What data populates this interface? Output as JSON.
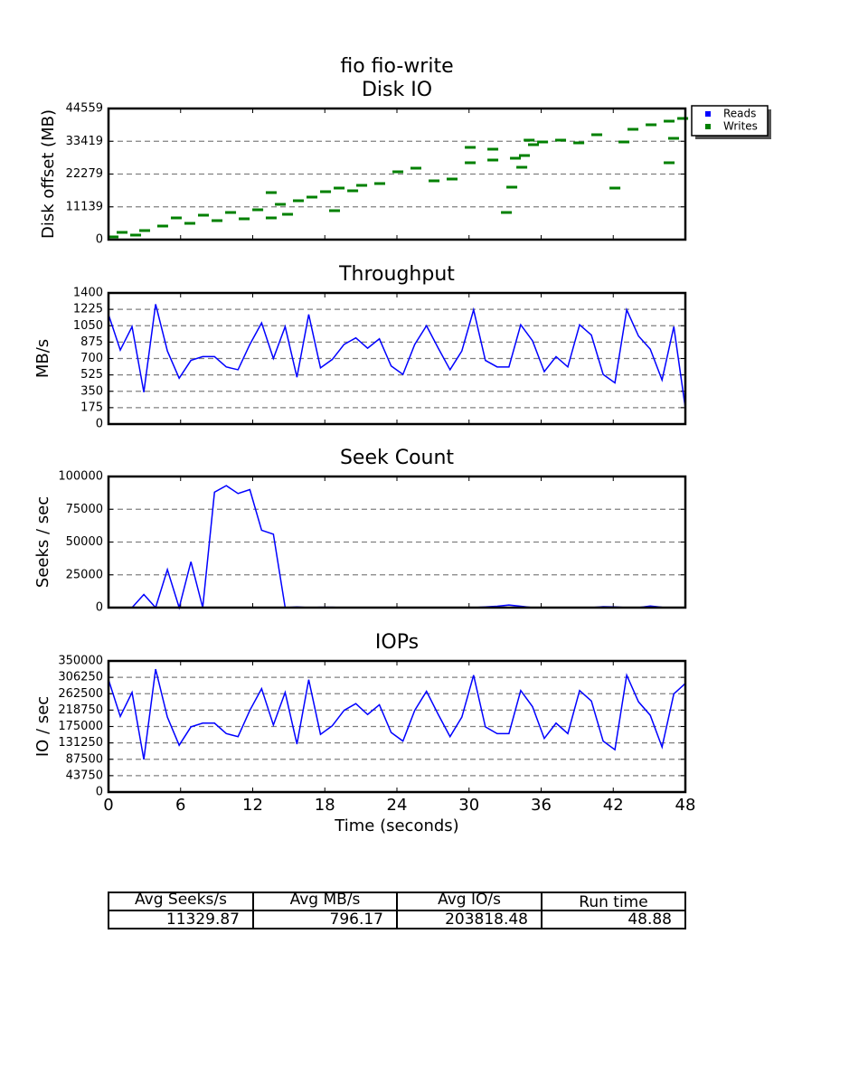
{
  "title": "fio fio-write",
  "chart_data": [
    {
      "type": "scatter",
      "title": "Disk IO",
      "ylabel": "Disk offset (MB)",
      "xlim": [
        0,
        48
      ],
      "xticks": [
        0,
        6,
        12,
        18,
        24,
        30,
        36,
        42,
        48
      ],
      "ylim": [
        0,
        44559
      ],
      "yticks": [
        0,
        11139,
        22279,
        33419,
        44559
      ],
      "grid": true,
      "legend": "outside upper right",
      "series": [
        {
          "name": "Reads",
          "color": "#0000ff",
          "x": [],
          "values": []
        },
        {
          "name": "Writes",
          "color": "#008000",
          "x": [
            0.38,
            1.13,
            2.26,
            3.01,
            4.51,
            5.64,
            6.77,
            7.9,
            9.03,
            10.16,
            11.29,
            12.42,
            13.54,
            14.3,
            15.8,
            16.93,
            18.06,
            19.19,
            20.32,
            21.07,
            22.57,
            24.08,
            25.58,
            27.09,
            28.59,
            30.1,
            31.98,
            33.11,
            33.86,
            34.61,
            35.36,
            36.12,
            37.62,
            39.13,
            40.63,
            42.89,
            43.64,
            45.15,
            46.65,
            47.78,
            33.56,
            34.39,
            42.14,
            46.65,
            47.02,
            31.98,
            30.1,
            35,
            13.54,
            14.9,
            18.81
          ],
          "values": [
            922,
            2458,
            1537,
            3073,
            4610,
            7375,
            5531,
            8297,
            6453,
            9219,
            7068,
            10141,
            7375,
            11985,
            13214,
            14443,
            16287,
            17516,
            16594,
            18438,
            19053,
            23048,
            24277,
            19975,
            20589,
            26121,
            27043,
            9219,
            27657,
            28579,
            32267,
            33189,
            33803,
            32881,
            35647,
            33189,
            37491,
            39027,
            40256,
            41178,
            17823,
            24584,
            17516,
            26121,
            34418,
            30730,
            31345,
            33803,
            15980,
            8604,
            9834
          ]
        }
      ]
    },
    {
      "type": "line",
      "title": "Throughput",
      "ylabel": "MB/s",
      "color": "#0000ff",
      "xlim": [
        0,
        48
      ],
      "xticks": [
        0,
        6,
        12,
        18,
        24,
        30,
        36,
        42,
        48
      ],
      "ylim": [
        0,
        1400
      ],
      "yticks": [
        0,
        175,
        350,
        525,
        700,
        875,
        1050,
        1225,
        1400
      ],
      "grid": true,
      "x": [
        0,
        0.98,
        1.96,
        2.94,
        3.92,
        4.9,
        5.88,
        6.86,
        7.84,
        8.82,
        9.8,
        10.78,
        11.76,
        12.74,
        13.72,
        14.7,
        15.68,
        16.66,
        17.64,
        18.62,
        19.6,
        20.58,
        21.56,
        22.54,
        23.52,
        24.5,
        25.48,
        26.46,
        27.44,
        28.42,
        29.4,
        30.38,
        31.36,
        32.34,
        33.32,
        34.3,
        35.28,
        36.26,
        37.24,
        38.22,
        39.2,
        40.18,
        41.16,
        42.14,
        43.12,
        44.1,
        45.08,
        46.06,
        47.04,
        48
      ],
      "values": [
        1170,
        790,
        1040,
        340,
        1280,
        780,
        490,
        680,
        720,
        720,
        610,
        580,
        850,
        1080,
        700,
        1040,
        500,
        1170,
        600,
        690,
        850,
        920,
        810,
        910,
        620,
        530,
        850,
        1050,
        810,
        580,
        780,
        1220,
        680,
        610,
        610,
        1060,
        890,
        560,
        720,
        610,
        1060,
        950,
        530,
        440,
        1220,
        940,
        800,
        470,
        1040,
        170
      ]
    },
    {
      "type": "line",
      "title": "Seek Count",
      "ylabel": "Seeks / sec",
      "color": "#0000ff",
      "xlim": [
        0,
        48
      ],
      "xticks": [
        0,
        6,
        12,
        18,
        24,
        30,
        36,
        42,
        48
      ],
      "ylim": [
        0,
        100000
      ],
      "yticks": [
        0,
        25000,
        50000,
        75000,
        100000
      ],
      "grid": true,
      "x": [
        0,
        0.98,
        1.96,
        2.94,
        3.92,
        4.9,
        5.88,
        6.86,
        7.84,
        8.82,
        9.8,
        10.78,
        11.76,
        12.74,
        13.72,
        14.7,
        15.68,
        16.66,
        17.64,
        18.62,
        19.6,
        20.58,
        21.56,
        22.54,
        23.52,
        24.5,
        25.48,
        26.46,
        27.44,
        28.42,
        29.4,
        30.38,
        31.36,
        32.34,
        33.32,
        34.3,
        35.28,
        36.26,
        37.24,
        38.22,
        39.2,
        40.18,
        41.16,
        42.14,
        43.12,
        44.1,
        45.08,
        46.06,
        47.04,
        48
      ],
      "values": [
        0,
        0,
        0,
        10000,
        0,
        29000,
        0,
        35000,
        0,
        88000,
        93000,
        87000,
        90000,
        59000,
        56000,
        0,
        500,
        0,
        300,
        300,
        0,
        0,
        0,
        0,
        0,
        0,
        0,
        0,
        0,
        0,
        0,
        0,
        500,
        1000,
        2000,
        1000,
        0,
        0,
        0,
        0,
        0,
        0,
        700,
        500,
        0,
        0,
        1200,
        300,
        0,
        0
      ]
    },
    {
      "type": "line",
      "title": "IOPs",
      "ylabel": "IO / sec",
      "xlabel": "Time (seconds)",
      "color": "#0000ff",
      "xlim": [
        0,
        48
      ],
      "xticks": [
        0,
        6,
        12,
        18,
        24,
        30,
        36,
        42,
        48
      ],
      "ylim": [
        0,
        350000
      ],
      "yticks": [
        0,
        43750,
        87500,
        131250,
        175000,
        218750,
        262500,
        306250,
        350000
      ],
      "grid": true,
      "x": [
        0,
        0.98,
        1.96,
        2.94,
        3.92,
        4.9,
        5.88,
        6.86,
        7.84,
        8.82,
        9.8,
        10.78,
        11.76,
        12.74,
        13.72,
        14.7,
        15.68,
        16.66,
        17.64,
        18.62,
        19.6,
        20.58,
        21.56,
        22.54,
        23.52,
        24.5,
        25.48,
        26.46,
        27.44,
        28.42,
        29.4,
        30.38,
        31.36,
        32.34,
        33.32,
        34.3,
        35.28,
        36.26,
        37.24,
        38.22,
        39.2,
        40.18,
        41.16,
        42.14,
        43.12,
        44.1,
        45.08,
        46.06,
        47.04,
        48
      ],
      "values": [
        300000,
        202000,
        266000,
        87000,
        328000,
        200000,
        125000,
        174000,
        184000,
        184000,
        156000,
        148000,
        218000,
        276000,
        179000,
        266000,
        128000,
        300000,
        154000,
        177000,
        218000,
        236000,
        207000,
        233000,
        159000,
        136000,
        218000,
        269000,
        207000,
        148000,
        200000,
        312000,
        174000,
        156000,
        156000,
        271000,
        228000,
        143000,
        184000,
        156000,
        271000,
        243000,
        136000,
        113000,
        312000,
        241000,
        205000,
        120000,
        262000,
        290000
      ]
    }
  ],
  "table": {
    "header": [
      "Avg Seeks/s",
      "Avg MB/s",
      "Avg IO/s",
      "Run time"
    ],
    "rows": [
      [
        "11329.87",
        "796.17",
        "203818.48",
        "48.88"
      ]
    ]
  }
}
